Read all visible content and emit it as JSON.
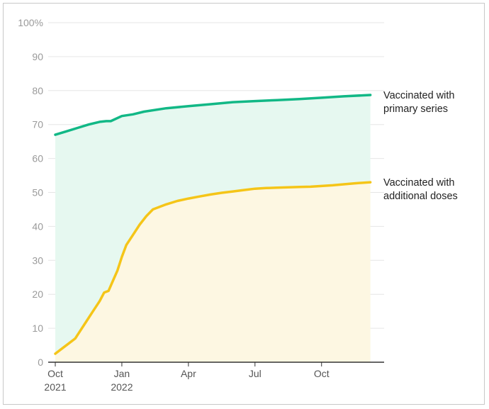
{
  "chart_data": {
    "type": "area",
    "title": "",
    "xlabel": "",
    "ylabel": "",
    "ylim": [
      0,
      100
    ],
    "y_ticks": [
      "0",
      "10",
      "20",
      "30",
      "40",
      "50",
      "60",
      "70",
      "80",
      "90",
      "100%"
    ],
    "x_ticks": [
      {
        "line1": "Oct",
        "line2": "2021",
        "month": 0
      },
      {
        "line1": "Jan",
        "line2": "2022",
        "month": 3
      },
      {
        "line1": "Apr",
        "line2": "",
        "month": 6
      },
      {
        "line1": "Jul",
        "line2": "",
        "month": 9
      },
      {
        "line1": "Oct",
        "line2": "",
        "month": 12
      }
    ],
    "x_range_months": [
      0,
      14.5
    ],
    "grid": true,
    "series": [
      {
        "name_lines": [
          "Vaccinated with",
          "primary series"
        ],
        "color": "#12b886",
        "fill": "#e6f8f0",
        "points": [
          [
            0,
            67
          ],
          [
            0.5,
            68
          ],
          [
            1.0,
            69
          ],
          [
            1.5,
            70
          ],
          [
            2.0,
            70.8
          ],
          [
            2.3,
            71
          ],
          [
            2.5,
            71
          ],
          [
            3.0,
            72.5
          ],
          [
            3.5,
            73
          ],
          [
            4.0,
            73.8
          ],
          [
            5.0,
            74.8
          ],
          [
            6.0,
            75.4
          ],
          [
            7.0,
            76
          ],
          [
            8.0,
            76.6
          ],
          [
            9.0,
            76.9
          ],
          [
            10.0,
            77.2
          ],
          [
            11.0,
            77.5
          ],
          [
            12.0,
            77.9
          ],
          [
            13.0,
            78.3
          ],
          [
            14.2,
            78.7
          ]
        ]
      },
      {
        "name_lines": [
          "Vaccinated with",
          "additional doses"
        ],
        "color": "#f5c518",
        "fill": "#fdf7e2",
        "points": [
          [
            0,
            2.5
          ],
          [
            0.3,
            4
          ],
          [
            0.6,
            5.5
          ],
          [
            0.9,
            7
          ],
          [
            1.1,
            9
          ],
          [
            1.4,
            12
          ],
          [
            1.7,
            15
          ],
          [
            2.0,
            18
          ],
          [
            2.2,
            20.5
          ],
          [
            2.4,
            21
          ],
          [
            2.6,
            24
          ],
          [
            2.8,
            27
          ],
          [
            3.0,
            31
          ],
          [
            3.2,
            34.5
          ],
          [
            3.5,
            37.5
          ],
          [
            3.8,
            40.5
          ],
          [
            4.1,
            43
          ],
          [
            4.4,
            45
          ],
          [
            5.0,
            46.5
          ],
          [
            5.5,
            47.5
          ],
          [
            6.0,
            48.2
          ],
          [
            6.5,
            48.8
          ],
          [
            7.0,
            49.4
          ],
          [
            7.5,
            49.9
          ],
          [
            8.0,
            50.3
          ],
          [
            8.5,
            50.7
          ],
          [
            9.0,
            51.1
          ],
          [
            9.5,
            51.3
          ],
          [
            10.0,
            51.4
          ],
          [
            10.5,
            51.5
          ],
          [
            11.0,
            51.6
          ],
          [
            11.5,
            51.7
          ],
          [
            12.0,
            51.9
          ],
          [
            12.5,
            52.1
          ],
          [
            13.0,
            52.4
          ],
          [
            13.5,
            52.7
          ],
          [
            14.2,
            53
          ]
        ]
      }
    ]
  }
}
